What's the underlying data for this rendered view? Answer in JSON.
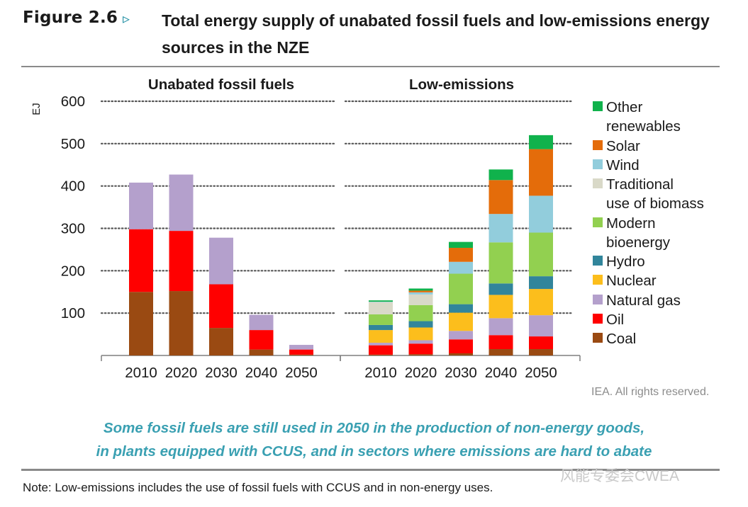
{
  "figure": {
    "label": "Figure 2.6",
    "arrow": "▹",
    "title": "Total energy supply of unabated fossil fuels and low-emissions energy sources in the NZE"
  },
  "chart_data": {
    "type": "bar",
    "stacked": true,
    "ylabel": "EJ",
    "ylim": [
      0,
      600
    ],
    "yticks": [
      100,
      200,
      300,
      400,
      500,
      600
    ],
    "grid": true,
    "legend_position": "right",
    "colors": {
      "Coal": "#9a4a12",
      "Oil": "#ff0000",
      "Natural gas": "#b4a0cc",
      "Nuclear": "#fcbe1c",
      "Hydro": "#31859b",
      "Modern bioenergy": "#92d050",
      "Traditional use of biomass": "#d9d9c8",
      "Wind": "#92cddc",
      "Solar": "#e46c0a",
      "Other renewables": "#10b24c"
    },
    "panels": [
      {
        "title": "Unabated fossil fuels",
        "categories": [
          "2010",
          "2020",
          "2030",
          "2040",
          "2050"
        ],
        "series": [
          {
            "name": "Coal",
            "values": [
              150,
              152,
              65,
              14,
              2
            ]
          },
          {
            "name": "Oil",
            "values": [
              148,
              142,
              103,
              46,
              12
            ]
          },
          {
            "name": "Natural gas",
            "values": [
              110,
              133,
              110,
              36,
              11
            ]
          }
        ]
      },
      {
        "title": "Low-emissions",
        "categories": [
          "2010",
          "2020",
          "2030",
          "2040",
          "2050"
        ],
        "series": [
          {
            "name": "Coal",
            "values": [
              2,
              3,
              5,
              15,
              15
            ]
          },
          {
            "name": "Oil",
            "values": [
              22,
              25,
              33,
              33,
              30
            ]
          },
          {
            "name": "Natural gas",
            "values": [
              6,
              8,
              20,
              40,
              50
            ]
          },
          {
            "name": "Nuclear",
            "values": [
              30,
              30,
              43,
              55,
              62
            ]
          },
          {
            "name": "Hydro",
            "values": [
              12,
              15,
              20,
              27,
              30
            ]
          },
          {
            "name": "Modern bioenergy",
            "values": [
              25,
              38,
              72,
              97,
              103
            ]
          },
          {
            "name": "Traditional use of biomass",
            "values": [
              29,
              25,
              0,
              0,
              0
            ]
          },
          {
            "name": "Wind",
            "values": [
              1,
              5,
              28,
              67,
              87
            ]
          },
          {
            "name": "Solar",
            "values": [
              0,
              4,
              33,
              80,
              110
            ]
          },
          {
            "name": "Other renewables",
            "values": [
              3,
              5,
              14,
              25,
              33
            ]
          }
        ]
      }
    ]
  },
  "legend": [
    {
      "name": "Other renewables",
      "lines": [
        "Other",
        "renewables"
      ],
      "color": "#10b24c"
    },
    {
      "name": "Solar",
      "lines": [
        "Solar"
      ],
      "color": "#e46c0a"
    },
    {
      "name": "Wind",
      "lines": [
        "Wind"
      ],
      "color": "#92cddc"
    },
    {
      "name": "Traditional use of biomass",
      "lines": [
        "Traditional",
        "use of biomass"
      ],
      "color": "#d9d9c8"
    },
    {
      "name": "Modern bioenergy",
      "lines": [
        "Modern",
        "bioenergy"
      ],
      "color": "#92d050"
    },
    {
      "name": "Hydro",
      "lines": [
        "Hydro"
      ],
      "color": "#31859b"
    },
    {
      "name": "Nuclear",
      "lines": [
        "Nuclear"
      ],
      "color": "#fcbe1c"
    },
    {
      "name": "Natural gas",
      "lines": [
        "Natural gas"
      ],
      "color": "#b4a0cc"
    },
    {
      "name": "Oil",
      "lines": [
        "Oil"
      ],
      "color": "#ff0000"
    },
    {
      "name": "Coal",
      "lines": [
        "Coal"
      ],
      "color": "#9a4a12"
    }
  ],
  "rights": "IEA. All rights reserved.",
  "caption": {
    "line1": "Some fossil fuels are still used in 2050 in the production of non-energy goods,",
    "line2": "in plants equipped with CCUS, and in sectors where emissions are hard to abate"
  },
  "note": "Note: Low-emissions includes the use of fossil fuels with CCUS and in non-energy uses.",
  "watermark": "风能专委会CWEA"
}
